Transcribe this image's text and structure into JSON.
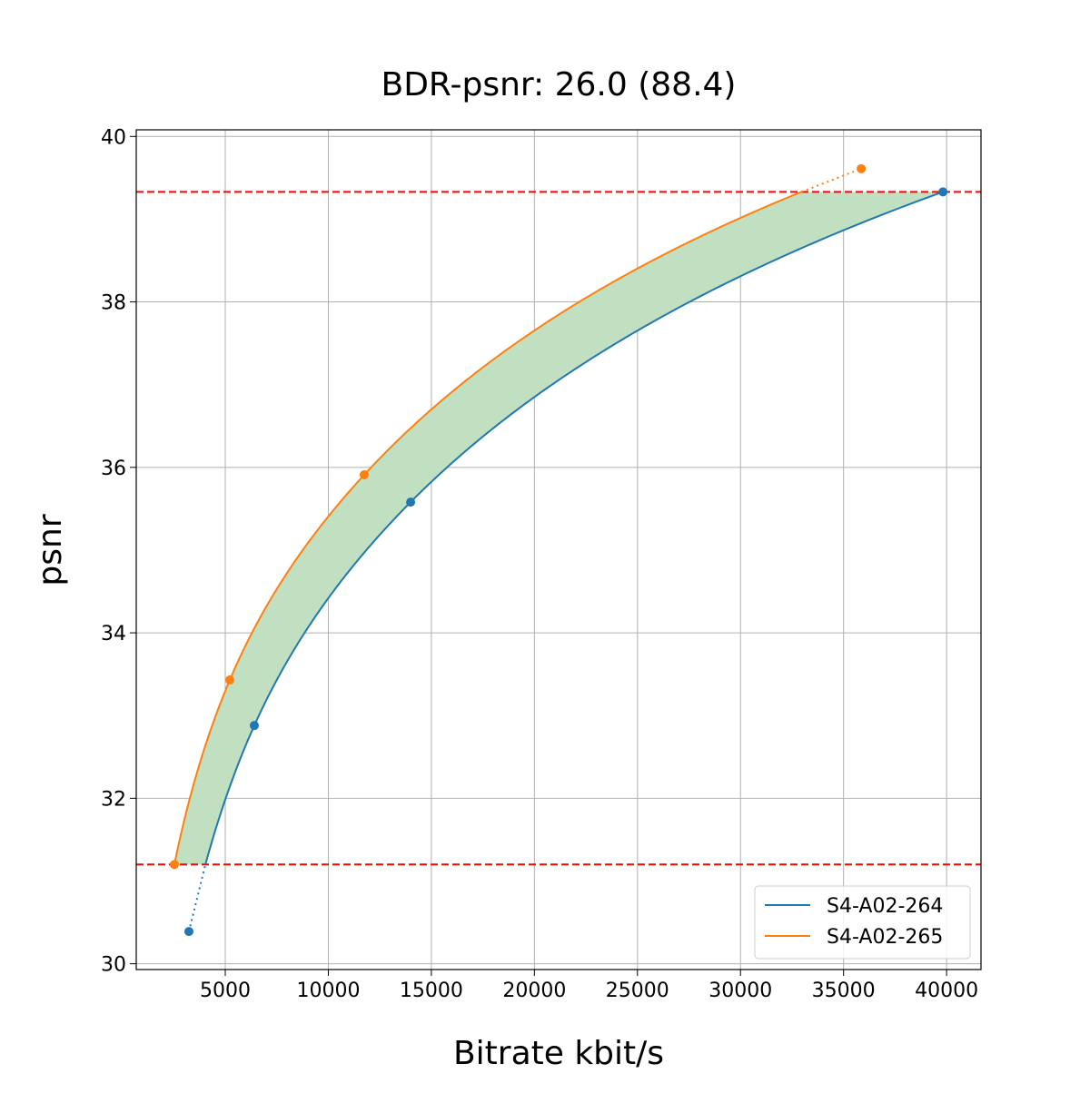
{
  "chart_data": {
    "type": "line",
    "title": "BDR-psnr: 26.0 (88.4)",
    "xlabel": "Bitrate kbit/s",
    "ylabel": "psnr",
    "xlim": [
      680,
      41670
    ],
    "ylim": [
      29.93,
      40.08
    ],
    "xticks": [
      5000,
      10000,
      15000,
      20000,
      25000,
      30000,
      35000,
      40000
    ],
    "yticks": [
      30,
      32,
      34,
      36,
      38,
      40
    ],
    "grid": true,
    "legend_position": "lower-right",
    "overlap_range_psnr": [
      31.2,
      39.33
    ],
    "fill_color": "#c1dfc1",
    "threshold_line_color": "#ff0000",
    "series": [
      {
        "name": "S4-A02-264",
        "color": "#1f77b4",
        "x": [
          3235,
          6410,
          13994,
          39823
        ],
        "y": [
          30.39,
          32.88,
          35.58,
          39.33
        ]
      },
      {
        "name": "S4-A02-265",
        "color": "#ff7f0e",
        "x": [
          2530,
          5220,
          11742,
          35857
        ],
        "y": [
          31.2,
          33.43,
          35.91,
          39.61
        ]
      }
    ]
  }
}
